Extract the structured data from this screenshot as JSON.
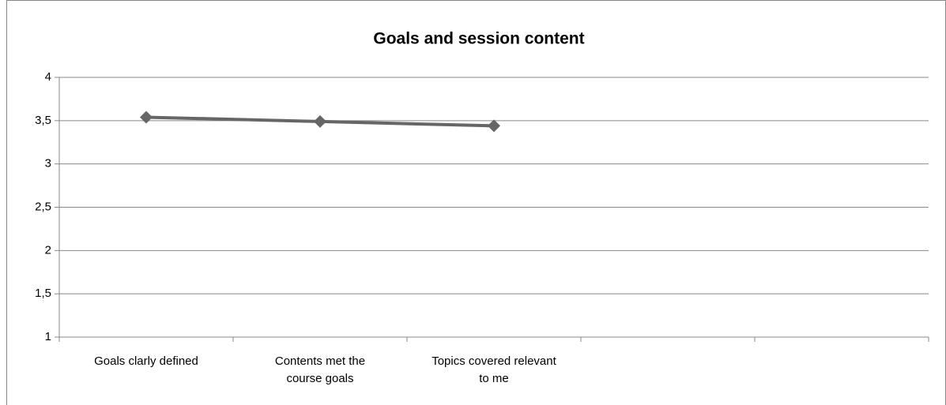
{
  "chart_data": {
    "type": "line",
    "title": "Goals and session content",
    "categories": [
      "Goals clarly defined",
      "Contents met the course goals",
      "Topics covered relevant to me",
      null,
      null
    ],
    "series": [
      {
        "color": "#666666",
        "values": [
          3.54,
          3.49,
          3.44,
          null,
          null
        ]
      }
    ],
    "ylim": [
      1,
      4
    ],
    "yticks": [
      1,
      {
        "value": 1.5,
        "label": "1,5"
      },
      2,
      {
        "value": 2.5,
        "label": "2,5"
      },
      3,
      {
        "value": 3.5,
        "label": "3,5"
      },
      4
    ],
    "grid": true
  }
}
